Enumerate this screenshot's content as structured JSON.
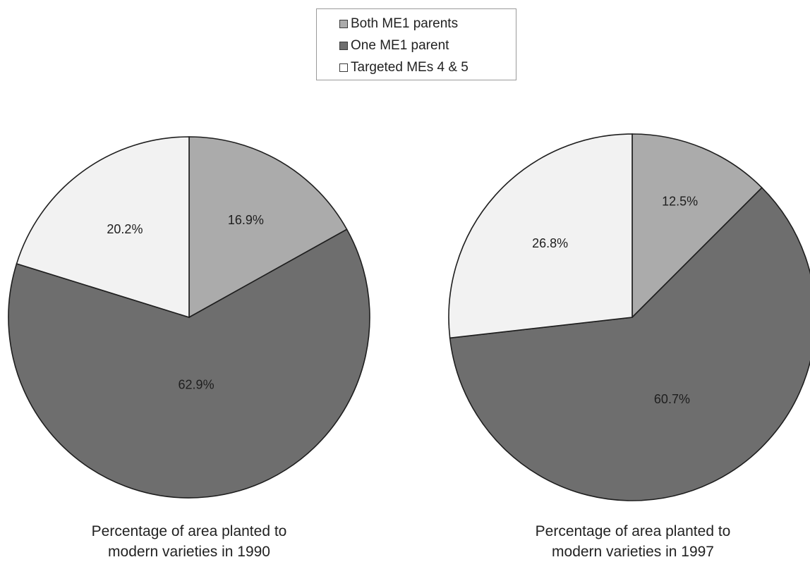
{
  "chart_data": [
    {
      "type": "pie",
      "caption": [
        "Percentage of area planted to",
        "modern varieties in 1990"
      ],
      "slices": [
        {
          "label": "Both ME1 parents",
          "value": 16.9,
          "value_label": "16.9%",
          "color": "#ababab"
        },
        {
          "label": "One ME1 parent",
          "value": 62.9,
          "value_label": "62.9%",
          "color": "#6e6e6e"
        },
        {
          "label": "Targeted MEs 4 & 5",
          "value": 20.2,
          "value_label": "20.2%",
          "color": "#f2f2f2"
        }
      ]
    },
    {
      "type": "pie",
      "caption": [
        "Percentage of area planted to",
        "modern varieties in 1997"
      ],
      "slices": [
        {
          "label": "Both ME1 parents",
          "value": 12.5,
          "value_label": "12.5%",
          "color": "#ababab"
        },
        {
          "label": "One ME1 parent",
          "value": 60.7,
          "value_label": "60.7%",
          "color": "#6e6e6e"
        },
        {
          "label": "Targeted MEs 4 & 5",
          "value": 26.8,
          "value_label": "26.8%",
          "color": "#f2f2f2"
        }
      ]
    }
  ],
  "legend": {
    "placement": "top-center",
    "items": [
      {
        "label": "Both ME1 parents",
        "color": "#ababab"
      },
      {
        "label": "One ME1 parent",
        "color": "#6e6e6e"
      },
      {
        "label": "Targeted MEs 4 & 5",
        "color": "#ffffff"
      }
    ]
  }
}
